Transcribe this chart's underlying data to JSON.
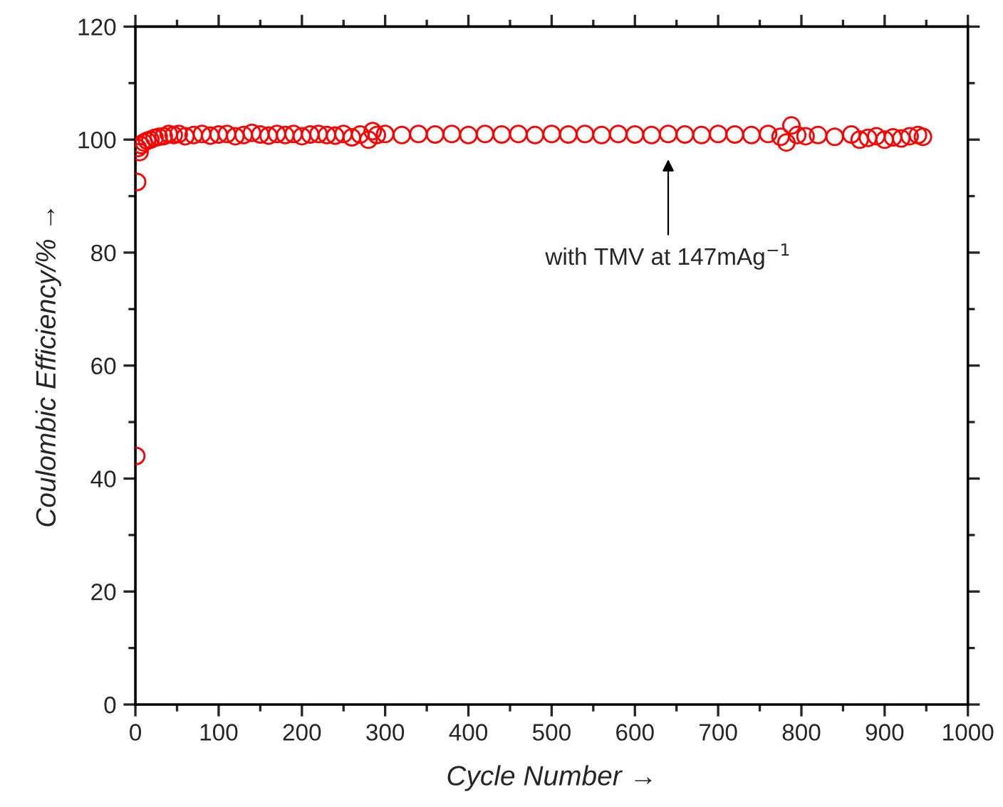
{
  "chart_data": {
    "type": "scatter",
    "xlabel": "Cycle Number →",
    "ylabel": "Coulombic Efficiency/% →",
    "xlim": [
      0,
      1000
    ],
    "ylim": [
      0,
      120
    ],
    "xticks": [
      0,
      100,
      200,
      300,
      400,
      500,
      600,
      700,
      800,
      900,
      1000
    ],
    "yticks": [
      0,
      20,
      40,
      60,
      80,
      100,
      120
    ],
    "marker": "circle",
    "grid": false,
    "annotations": [
      "with TMV at 147mAg$^{−1}$"
    ],
    "series": [
      {
        "color": "#ff0000",
        "x": [
          1,
          2,
          3,
          5,
          7,
          10,
          14,
          18,
          23,
          28,
          34,
          40,
          46,
          52,
          60,
          70,
          80,
          90,
          100,
          110,
          120,
          130,
          140,
          150,
          160,
          170,
          180,
          190,
          200,
          210,
          220,
          230,
          240,
          250,
          260,
          270,
          280,
          285,
          290,
          300,
          320,
          340,
          360,
          380,
          400,
          420,
          440,
          460,
          480,
          500,
          520,
          540,
          560,
          580,
          600,
          620,
          640,
          660,
          680,
          700,
          720,
          740,
          760,
          775,
          782,
          788,
          795,
          805,
          820,
          840,
          860,
          870,
          880,
          890,
          900,
          910,
          920,
          930,
          940,
          946
        ],
        "values": [
          44,
          92.5,
          98.5,
          97.8,
          99,
          99.5,
          99.8,
          100,
          100.3,
          100.5,
          100.6,
          101,
          100.8,
          101,
          100.6,
          100.8,
          101,
          100.7,
          100.9,
          101,
          100.6,
          100.8,
          101.2,
          100.9,
          100.7,
          101,
          100.8,
          101,
          100.6,
          100.9,
          101,
          100.8,
          100.7,
          101,
          100.4,
          100.9,
          100,
          101.5,
          100.8,
          101,
          100.8,
          101,
          100.9,
          101,
          100.8,
          101,
          100.9,
          101,
          100.8,
          101,
          100.9,
          101,
          100.8,
          101,
          100.9,
          100.8,
          101,
          100.9,
          100.8,
          101,
          100.9,
          100.8,
          101,
          100.5,
          99.5,
          102.5,
          100.8,
          100.6,
          100.8,
          100.5,
          100.9,
          100,
          100.3,
          100.6,
          100,
          100.4,
          100.2,
          100.6,
          100.8,
          100.5
        ]
      }
    ]
  }
}
